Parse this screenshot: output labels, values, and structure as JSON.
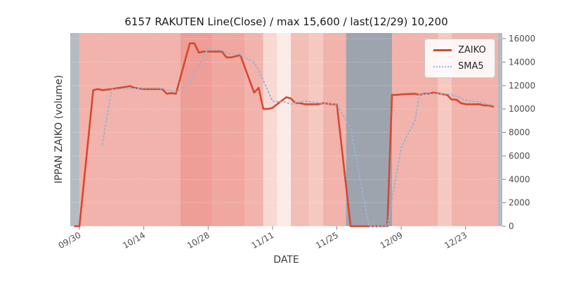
{
  "title": "6157 RAKUTEN Line(Close) / max 15,600 / last(12/29) 10,200",
  "axes": {
    "x_label": "DATE",
    "y_label": "IPPAN ZAIKO (volume)"
  },
  "legend": {
    "items": [
      {
        "label": "ZAIKO",
        "color": "#d6482f",
        "style": "solid"
      },
      {
        "label": "SMA5",
        "color": "#9cb3d3",
        "style": "dotted"
      }
    ]
  },
  "chart_data": {
    "type": "line",
    "title": "6157 RAKUTEN Line(Close) / max 15,600 / last(12/29) 10,200",
    "xlabel": "DATE",
    "ylabel": "IPPAN ZAIKO (volume)",
    "ylim": [
      0,
      16000
    ],
    "grid": true,
    "legend_position": "upper right",
    "max_value": 15600,
    "last": {
      "date": "12/29",
      "value": 10200
    },
    "x_tick_labels": [
      "09/30",
      "10/14",
      "10/28",
      "11/11",
      "11/25",
      "12/09",
      "12/23"
    ],
    "y_ticks": [
      0,
      2000,
      4000,
      6000,
      8000,
      10000,
      12000,
      14000,
      16000
    ],
    "dates": [
      "09/29",
      "09/30",
      "10/03",
      "10/04",
      "10/05",
      "10/06",
      "10/07",
      "10/11",
      "10/12",
      "10/13",
      "10/14",
      "10/17",
      "10/18",
      "10/19",
      "10/20",
      "10/21",
      "10/24",
      "10/25",
      "10/26",
      "10/27",
      "10/28",
      "10/31",
      "11/01",
      "11/02",
      "11/04",
      "11/07",
      "11/08",
      "11/09",
      "11/10",
      "11/11",
      "11/14",
      "11/15",
      "11/16",
      "11/17",
      "11/18",
      "11/21",
      "11/22",
      "11/24",
      "11/25",
      "11/28",
      "11/29",
      "11/30",
      "12/01",
      "12/02",
      "12/05",
      "12/06",
      "12/07",
      "12/08",
      "12/09",
      "12/12",
      "12/13",
      "12/14",
      "12/15",
      "12/16",
      "12/19",
      "12/20",
      "12/21",
      "12/22",
      "12/23",
      "12/26",
      "12/27",
      "12/28",
      "12/29"
    ],
    "series": [
      {
        "name": "ZAIKO",
        "color": "#d6482f",
        "style": "solid",
        "values": [
          0,
          0,
          11600,
          11700,
          11600,
          11650,
          11700,
          11950,
          11800,
          11750,
          11700,
          11700,
          11700,
          11300,
          11350,
          11300,
          15600,
          15600,
          14800,
          14900,
          14900,
          14900,
          14400,
          14400,
          14600,
          11400,
          11800,
          10000,
          10000,
          10100,
          11000,
          10900,
          10500,
          10500,
          10400,
          10400,
          10500,
          10400,
          10400,
          0,
          0,
          0,
          0,
          0,
          0,
          0,
          11200,
          11200,
          11250,
          11300,
          11200,
          11300,
          11300,
          11400,
          11200,
          10800,
          10800,
          10500,
          10400,
          10400,
          10300,
          10300,
          10200
        ]
      },
      {
        "name": "SMA5",
        "color": "#9cb3d3",
        "style": "dotted",
        "values": [
          null,
          null,
          null,
          null,
          6980,
          9310,
          11650,
          11720,
          11740,
          11770,
          11780,
          11780,
          11730,
          11630,
          11550,
          11470,
          12250,
          13030,
          13730,
          14440,
          15160,
          15020,
          14780,
          14700,
          14640,
          13940,
          13320,
          12440,
          11560,
          10660,
          10580,
          10400,
          10500,
          10600,
          10660,
          10540,
          10460,
          10440,
          10420,
          8340,
          6260,
          4160,
          2080,
          0,
          0,
          0,
          2240,
          4480,
          6730,
          8990,
          11230,
          11250,
          11270,
          11300,
          11280,
          11200,
          11100,
          10940,
          10740,
          10580,
          10480,
          10380,
          10320
        ]
      }
    ],
    "background_bands": [
      {
        "from": "09/28",
        "to": "09/30",
        "color": "#b6bac1"
      },
      {
        "from": "09/30",
        "to": "10/22",
        "color": "#f1b3ab"
      },
      {
        "from": "10/22",
        "to": "10/29",
        "color": "#ee9e96"
      },
      {
        "from": "10/29",
        "to": "11/05",
        "color": "#efa7a0"
      },
      {
        "from": "11/05",
        "to": "11/09",
        "color": "#f1b3ab"
      },
      {
        "from": "11/09",
        "to": "11/12",
        "color": "#f8d8d2"
      },
      {
        "from": "11/12",
        "to": "11/15",
        "color": "#fcece7"
      },
      {
        "from": "11/15",
        "to": "11/19",
        "color": "#f3beb5"
      },
      {
        "from": "11/19",
        "to": "11/22",
        "color": "#f5c8c0"
      },
      {
        "from": "11/22",
        "to": "11/27",
        "color": "#f1b3ab"
      },
      {
        "from": "11/27",
        "to": "12/07",
        "color": "#9da4ae"
      },
      {
        "from": "12/07",
        "to": "12/17",
        "color": "#f1b3ab"
      },
      {
        "from": "12/17",
        "to": "12/20",
        "color": "#f5c9c1"
      },
      {
        "from": "12/20",
        "to": "12/30",
        "color": "#f1b3ab"
      },
      {
        "from": "12/30",
        "to": "12/31",
        "color": "#b6bac1"
      }
    ]
  }
}
